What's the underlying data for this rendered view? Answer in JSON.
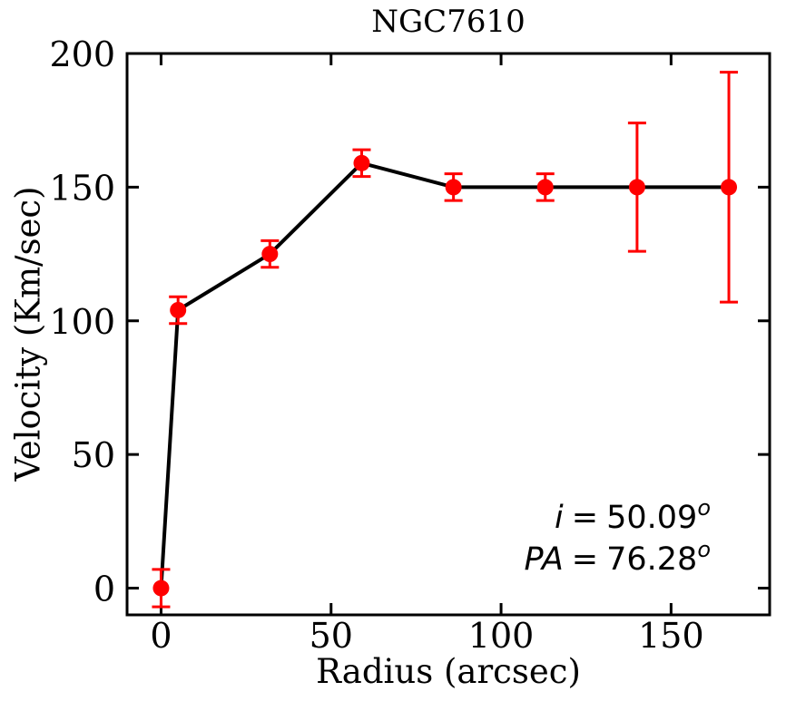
{
  "chart_data": {
    "type": "line",
    "title": "NGC7610",
    "xlabel": "Radius (arcsec)",
    "ylabel": "Velocity (Km/sec)",
    "x": [
      0,
      5,
      32,
      59,
      86,
      113,
      140,
      167
    ],
    "y": [
      0,
      104,
      125,
      159,
      150,
      150,
      150,
      150
    ],
    "yerr": [
      7,
      5,
      5,
      5,
      5,
      5,
      24,
      43
    ],
    "xticks": [
      0,
      50,
      100,
      150
    ],
    "yticks": [
      0,
      50,
      100,
      150,
      200
    ],
    "xlim": [
      -10,
      179
    ],
    "ylim": [
      -10,
      200
    ],
    "grid": false,
    "legend": "none",
    "line_color": "#000000",
    "marker_color": "#ff0000",
    "annotation": {
      "inclination": {
        "label": "i",
        "eq": "=",
        "value": "50.09",
        "sup": "o"
      },
      "position_angle": {
        "label": "PA",
        "eq": "=",
        "value": "76.28",
        "sup": "o"
      }
    }
  }
}
